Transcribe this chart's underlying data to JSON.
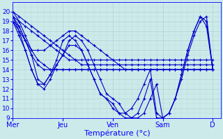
{
  "background_color": "#cdeaea",
  "grid_color_major": "#a8cccc",
  "grid_color_minor": "#b8d8d8",
  "line_color": "#0000cc",
  "marker": "+",
  "marker_size": 3,
  "marker_lw": 0.8,
  "line_width": 0.8,
  "ylim": [
    9,
    21
  ],
  "yticks": [
    9,
    10,
    11,
    12,
    13,
    14,
    15,
    16,
    17,
    18,
    19,
    20
  ],
  "xlabel": "Température (°c)",
  "xlabel_fontsize": 8,
  "day_labels": [
    "Mer",
    "Jeu",
    "Ven",
    "Sam",
    "D"
  ],
  "day_positions": [
    0,
    24,
    48,
    72,
    96
  ],
  "xlim": [
    0,
    100
  ],
  "series": [
    {
      "x": [
        0,
        3,
        6,
        9,
        12,
        15,
        18,
        21,
        24,
        27,
        30,
        33,
        36,
        39,
        42,
        45,
        48,
        51,
        54,
        57,
        60,
        63,
        66,
        69,
        72,
        75,
        78,
        81,
        84,
        87,
        90,
        93,
        96
      ],
      "y": [
        19,
        18.5,
        17,
        15.5,
        14.5,
        14,
        14,
        14,
        14,
        14,
        14,
        14,
        14,
        14,
        14,
        14,
        14,
        14,
        14,
        14,
        14,
        14,
        14,
        14,
        14,
        14,
        14,
        14,
        14,
        14,
        14,
        14,
        14
      ]
    },
    {
      "x": [
        0,
        3,
        6,
        9,
        12,
        15,
        18,
        21,
        24,
        27,
        30,
        33,
        36,
        39,
        42,
        45,
        48,
        51,
        54,
        57,
        60,
        63,
        66,
        69,
        72,
        75,
        78,
        81,
        84,
        87,
        90,
        93,
        96
      ],
      "y": [
        20,
        19,
        17.5,
        16,
        15,
        14.5,
        14,
        14,
        14,
        14,
        14,
        14,
        14,
        14,
        14,
        14,
        14,
        14,
        14,
        14,
        14,
        14,
        14,
        14,
        14,
        14,
        14,
        14,
        14,
        14,
        14,
        14,
        14
      ]
    },
    {
      "x": [
        0,
        3,
        6,
        9,
        12,
        15,
        18,
        21,
        24,
        27,
        30,
        33,
        36,
        39,
        42,
        45,
        48,
        51,
        54,
        57,
        60,
        63,
        66,
        69,
        72,
        75,
        78,
        81,
        84,
        87,
        90,
        93,
        96
      ],
      "y": [
        19.5,
        19,
        18.5,
        18,
        17.5,
        17,
        16.5,
        16,
        15.5,
        15,
        15,
        15,
        15,
        15,
        15,
        15,
        15,
        15,
        15,
        15,
        15,
        15,
        15,
        15,
        15,
        15,
        15,
        15,
        15,
        15,
        15,
        15,
        15
      ]
    },
    {
      "x": [
        0,
        3,
        6,
        9,
        12,
        15,
        18,
        21,
        24,
        27,
        30,
        33,
        36,
        39,
        42,
        45,
        48,
        51,
        54,
        57,
        60,
        63,
        66,
        69,
        72,
        75,
        78,
        81,
        84,
        87,
        90,
        93,
        96
      ],
      "y": [
        19,
        18,
        17,
        16,
        16,
        16,
        16.5,
        17,
        17.5,
        18,
        18,
        17.5,
        17,
        16.5,
        16,
        15.5,
        15,
        14.5,
        14,
        14,
        14,
        14,
        14,
        14,
        14,
        14,
        14,
        14,
        14,
        14,
        14,
        14,
        14
      ]
    },
    {
      "x": [
        0,
        3,
        6,
        9,
        12,
        15,
        18,
        21,
        24,
        27,
        30,
        33,
        36,
        39,
        42,
        45,
        48,
        51,
        54,
        57,
        60,
        63,
        66,
        69,
        72,
        75,
        78,
        81,
        84,
        87,
        90,
        93,
        96
      ],
      "y": [
        19.5,
        18.5,
        17,
        15.5,
        13,
        12.5,
        13.5,
        15,
        17,
        17.5,
        17,
        16,
        14.5,
        13,
        11.5,
        11,
        10,
        9.5,
        9.5,
        10,
        11,
        12.5,
        14,
        9.5,
        9,
        9.5,
        11,
        13,
        15.5,
        17.5,
        19,
        19.5,
        14
      ]
    },
    {
      "x": [
        0,
        3,
        6,
        9,
        12,
        15,
        18,
        21,
        24,
        27,
        30,
        33,
        36,
        39,
        42,
        45,
        48,
        51,
        54,
        57,
        60,
        63,
        66,
        69,
        72,
        75,
        78,
        81,
        84,
        87,
        90,
        93,
        96
      ],
      "y": [
        19,
        17.5,
        16,
        14,
        12.5,
        12.5,
        13.5,
        14.5,
        15.5,
        17,
        17.5,
        17,
        16,
        14.5,
        13,
        11.5,
        11,
        10.5,
        9.5,
        9,
        9,
        9.5,
        11,
        12.5,
        9,
        9.5,
        11,
        13.5,
        16,
        18,
        19.5,
        19,
        14
      ]
    },
    {
      "x": [
        0,
        3,
        6,
        9,
        12,
        15,
        18,
        21,
        24,
        27,
        30,
        33,
        36,
        39,
        42,
        45,
        48,
        51,
        54,
        57,
        60,
        63,
        66,
        69,
        72,
        75,
        78,
        81,
        84,
        87,
        90,
        93,
        96
      ],
      "y": [
        19.5,
        18,
        16,
        14,
        12.5,
        12,
        13,
        14.5,
        15.5,
        16.5,
        16.5,
        16,
        14.5,
        13,
        11.5,
        11,
        10.5,
        9.5,
        9,
        9,
        9.5,
        11,
        13,
        9,
        9,
        9.5,
        11,
        13.5,
        16,
        18,
        19.5,
        18.5,
        14
      ]
    },
    {
      "x": [
        0,
        3,
        6,
        9,
        12,
        15,
        18,
        21,
        24,
        27,
        30,
        33,
        36,
        39,
        42,
        45,
        48,
        51,
        54,
        57,
        60,
        63,
        66,
        69,
        72,
        75,
        78,
        81,
        84,
        87,
        90,
        93,
        96
      ],
      "y": [
        20,
        19.5,
        19,
        18.5,
        18,
        17.5,
        17,
        16.5,
        16,
        15.5,
        15,
        14.5,
        14.5,
        14.5,
        14.5,
        14.5,
        14.5,
        14.5,
        14.5,
        14.5,
        14.5,
        14.5,
        14.5,
        14.5,
        14.5,
        14.5,
        14.5,
        14.5,
        14.5,
        14.5,
        14.5,
        14.5,
        14.5
      ]
    }
  ]
}
